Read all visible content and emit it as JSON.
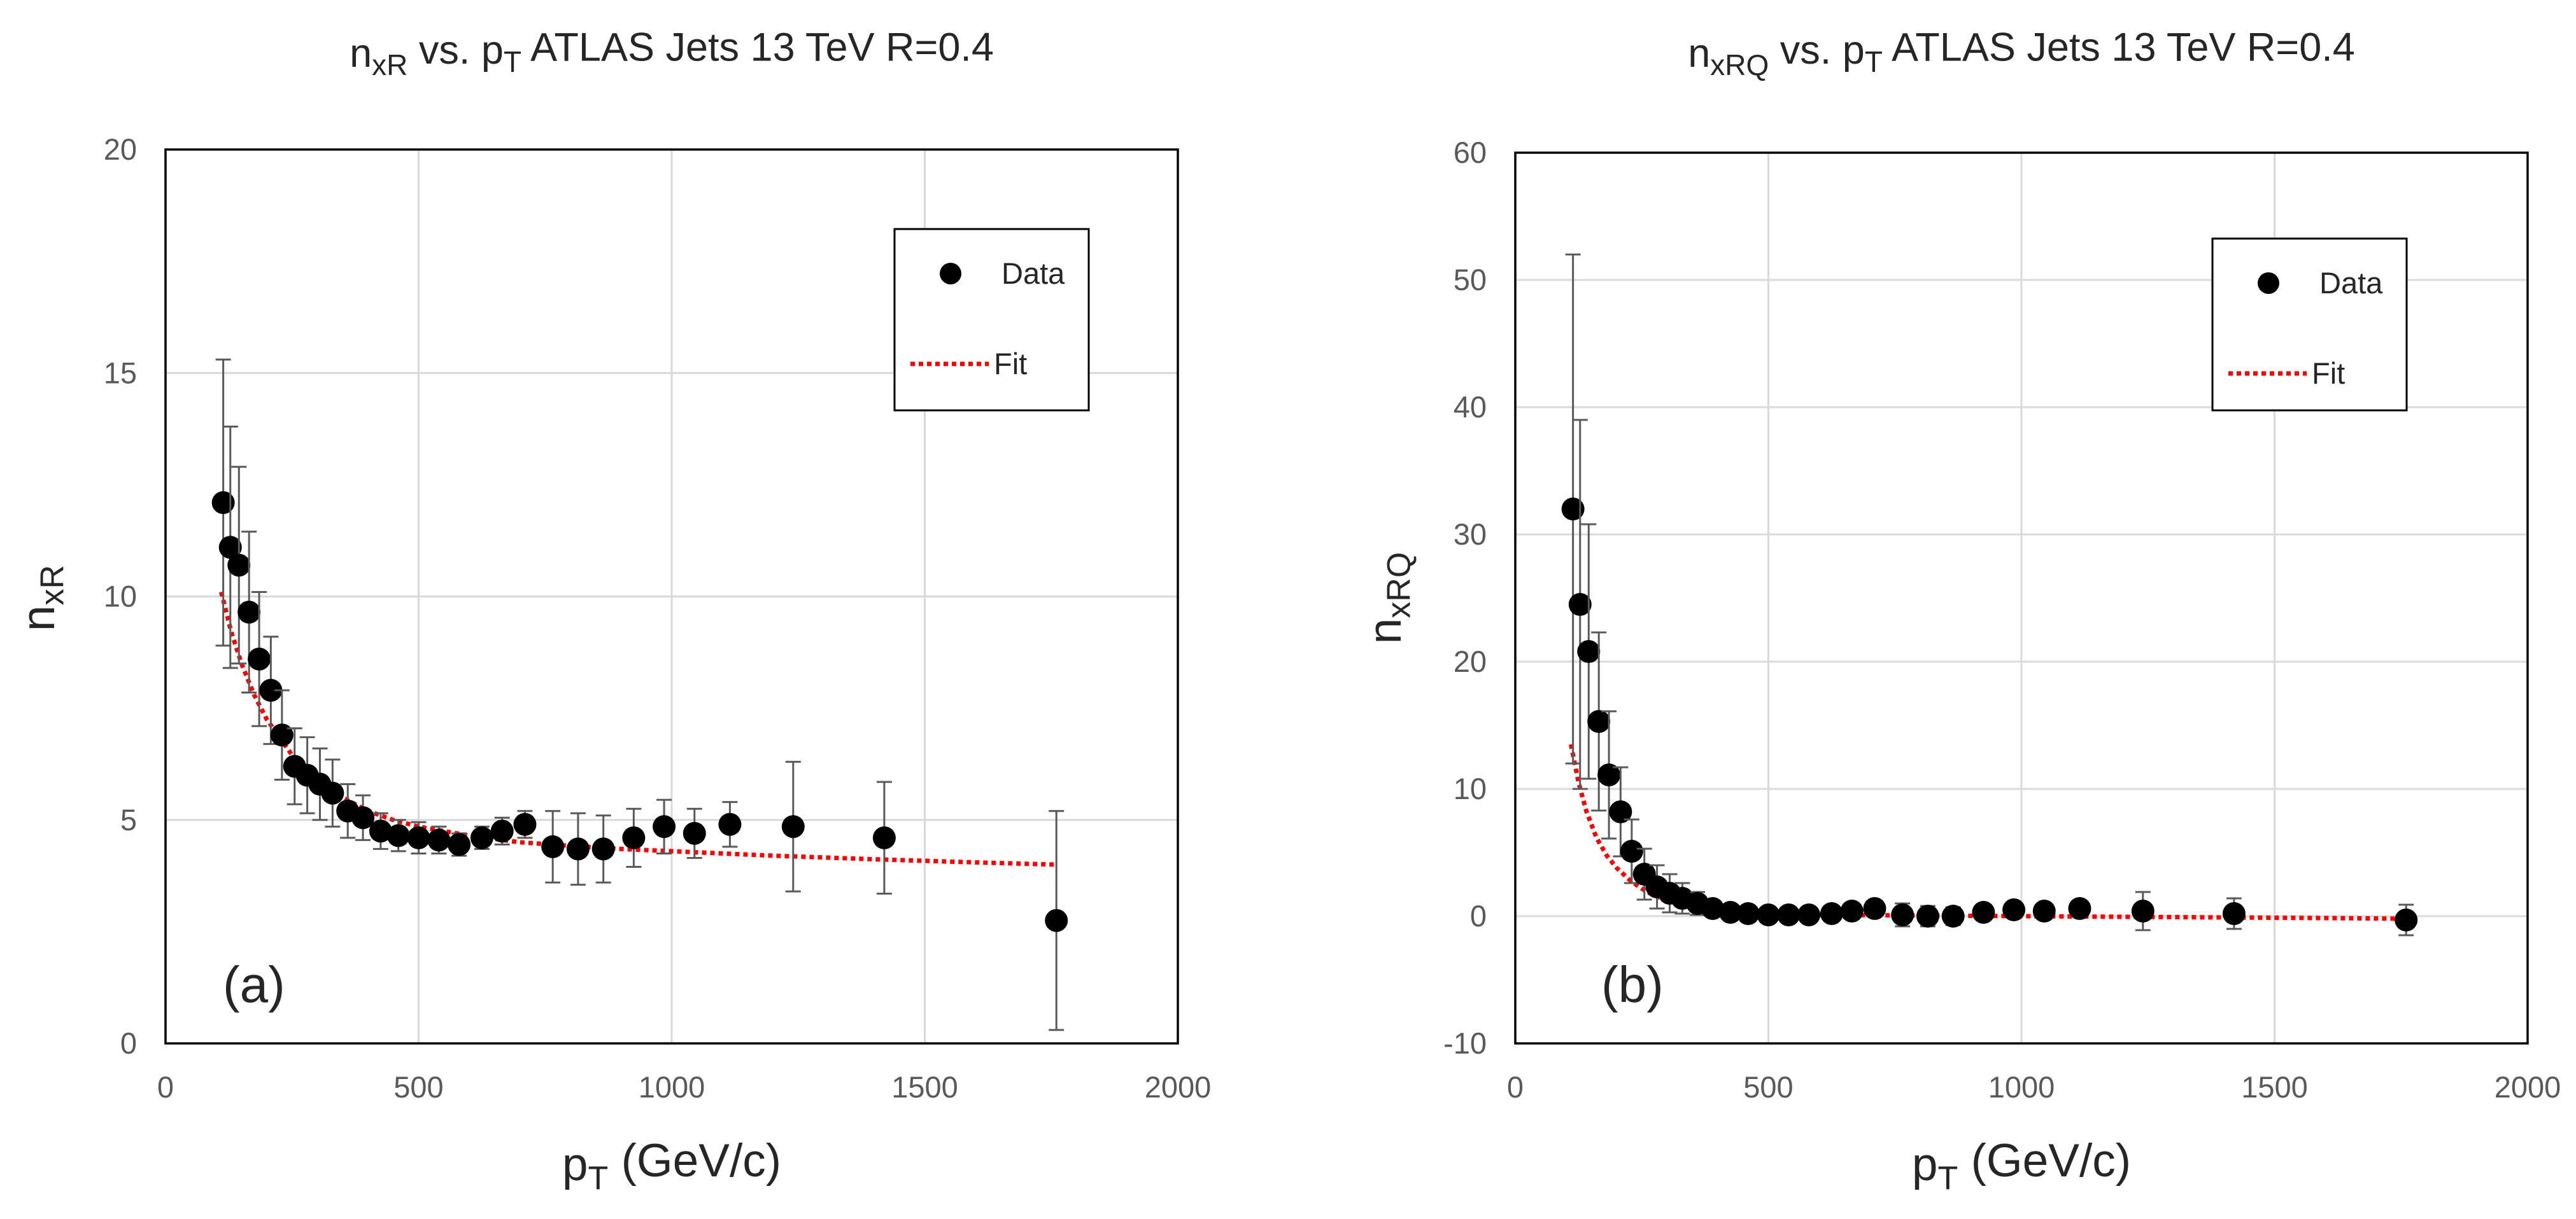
{
  "chart_data": [
    {
      "type": "scatter",
      "title_parts": [
        "n",
        "xR",
        " vs. p",
        "T",
        " ATLAS Jets 13 TeV R=0.4"
      ],
      "xlabel_parts": [
        "p",
        "T",
        " (GeV/c)"
      ],
      "ylabel_parts": [
        "n",
        "xR"
      ],
      "xlim": [
        0,
        2000
      ],
      "ylim": [
        0,
        20
      ],
      "xticks": [
        0,
        500,
        1000,
        1500,
        2000
      ],
      "yticks": [
        0,
        5,
        10,
        15,
        20
      ],
      "xtick_labels": [
        "0",
        "500",
        "1000",
        "1500",
        "2000"
      ],
      "ytick_labels": [
        "0",
        "5",
        "10",
        "15",
        "20"
      ],
      "grid": true,
      "panel_label": "(a)",
      "legend": {
        "position": "top-right",
        "data_label": "Data",
        "fit_label": "Fit"
      },
      "series": [
        {
          "name": "Data",
          "x": [
            114,
            128,
            145,
            165,
            185,
            208,
            230,
            255,
            280,
            305,
            330,
            360,
            390,
            425,
            460,
            500,
            540,
            580,
            625,
            665,
            710,
            765,
            815,
            865,
            925,
            985,
            1045,
            1115,
            1240,
            1420,
            1760
          ],
          "y": [
            12.1,
            11.1,
            10.7,
            9.65,
            8.6,
            7.9,
            6.9,
            6.2,
            6.0,
            5.8,
            5.6,
            5.2,
            5.05,
            4.75,
            4.65,
            4.6,
            4.55,
            4.45,
            4.6,
            4.75,
            4.9,
            4.4,
            4.35,
            4.35,
            4.6,
            4.85,
            4.7,
            4.9,
            4.85,
            4.6,
            2.75
          ],
          "err": [
            3.2,
            2.7,
            2.2,
            1.8,
            1.5,
            1.2,
            1.0,
            0.85,
            0.85,
            0.8,
            0.75,
            0.6,
            0.5,
            0.4,
            0.35,
            0.35,
            0.3,
            0.25,
            0.25,
            0.3,
            0.3,
            0.8,
            0.8,
            0.75,
            0.65,
            0.6,
            0.55,
            0.5,
            1.45,
            1.25,
            2.45
          ]
        },
        {
          "name": "Fit",
          "x": [
            110,
            130,
            150,
            175,
            200,
            250,
            300,
            350,
            400,
            450,
            500,
            550,
            600,
            700,
            800,
            900,
            1000,
            1200,
            1400,
            1600,
            1760
          ],
          "y": [
            10.1,
            9.2,
            8.5,
            7.8,
            7.25,
            6.45,
            5.9,
            5.5,
            5.2,
            5.0,
            4.85,
            4.75,
            4.65,
            4.5,
            4.42,
            4.35,
            4.3,
            4.2,
            4.12,
            4.05,
            4.0
          ]
        }
      ]
    },
    {
      "type": "scatter",
      "title_parts": [
        "n",
        "xRQ",
        " vs. p",
        "T",
        " ATLAS Jets 13 TeV R=0.4"
      ],
      "xlabel_parts": [
        "p",
        "T",
        " (GeV/c)"
      ],
      "ylabel_parts": [
        "n",
        "xRQ"
      ],
      "xlim": [
        0,
        2000
      ],
      "ylim": [
        -10,
        60
      ],
      "xticks": [
        0,
        500,
        1000,
        1500,
        2000
      ],
      "yticks": [
        -10,
        0,
        10,
        20,
        30,
        40,
        50,
        60
      ],
      "xtick_labels": [
        "0",
        "500",
        "1000",
        "1500",
        "2000"
      ],
      "ytick_labels": [
        "-10",
        "0",
        "10",
        "20",
        "30",
        "40",
        "50",
        "60"
      ],
      "grid": true,
      "panel_label": "(b)",
      "legend": {
        "position": "top-right",
        "data_label": "Data",
        "fit_label": "Fit"
      },
      "series": [
        {
          "name": "Data",
          "x": [
            114,
            128,
            145,
            165,
            185,
            208,
            230,
            255,
            280,
            305,
            330,
            360,
            390,
            425,
            460,
            500,
            540,
            580,
            625,
            665,
            710,
            765,
            815,
            865,
            925,
            985,
            1045,
            1115,
            1240,
            1420,
            1760
          ],
          "y": [
            32,
            24.5,
            20.8,
            15.3,
            11.1,
            8.2,
            5.1,
            3.3,
            2.3,
            1.8,
            1.4,
            1.0,
            0.6,
            0.3,
            0.2,
            0.1,
            0.1,
            0.1,
            0.2,
            0.4,
            0.6,
            0.1,
            0.0,
            0.0,
            0.3,
            0.5,
            0.4,
            0.6,
            0.4,
            0.2,
            -0.3
          ],
          "err": [
            20,
            14.5,
            10,
            7,
            5,
            3.5,
            2.5,
            2,
            1.7,
            1.5,
            1.2,
            0.9,
            0.6,
            0.5,
            0.4,
            0.35,
            0.3,
            0.3,
            0.3,
            0.35,
            0.4,
            0.9,
            0.8,
            0.7,
            0.6,
            0.5,
            0.5,
            0.6,
            1.5,
            1.2,
            1.2
          ]
        },
        {
          "name": "Fit",
          "x": [
            110,
            125,
            140,
            160,
            180,
            200,
            230,
            260,
            300,
            350,
            400,
            500,
            600,
            800,
            1000,
            1200,
            1400,
            1600,
            1760
          ],
          "y": [
            13.5,
            10.5,
            8.3,
            6.2,
            4.8,
            3.8,
            2.7,
            1.9,
            1.2,
            0.7,
            0.4,
            0.2,
            0.1,
            0.05,
            0.0,
            -0.05,
            -0.1,
            -0.15,
            -0.2
          ]
        }
      ]
    }
  ]
}
